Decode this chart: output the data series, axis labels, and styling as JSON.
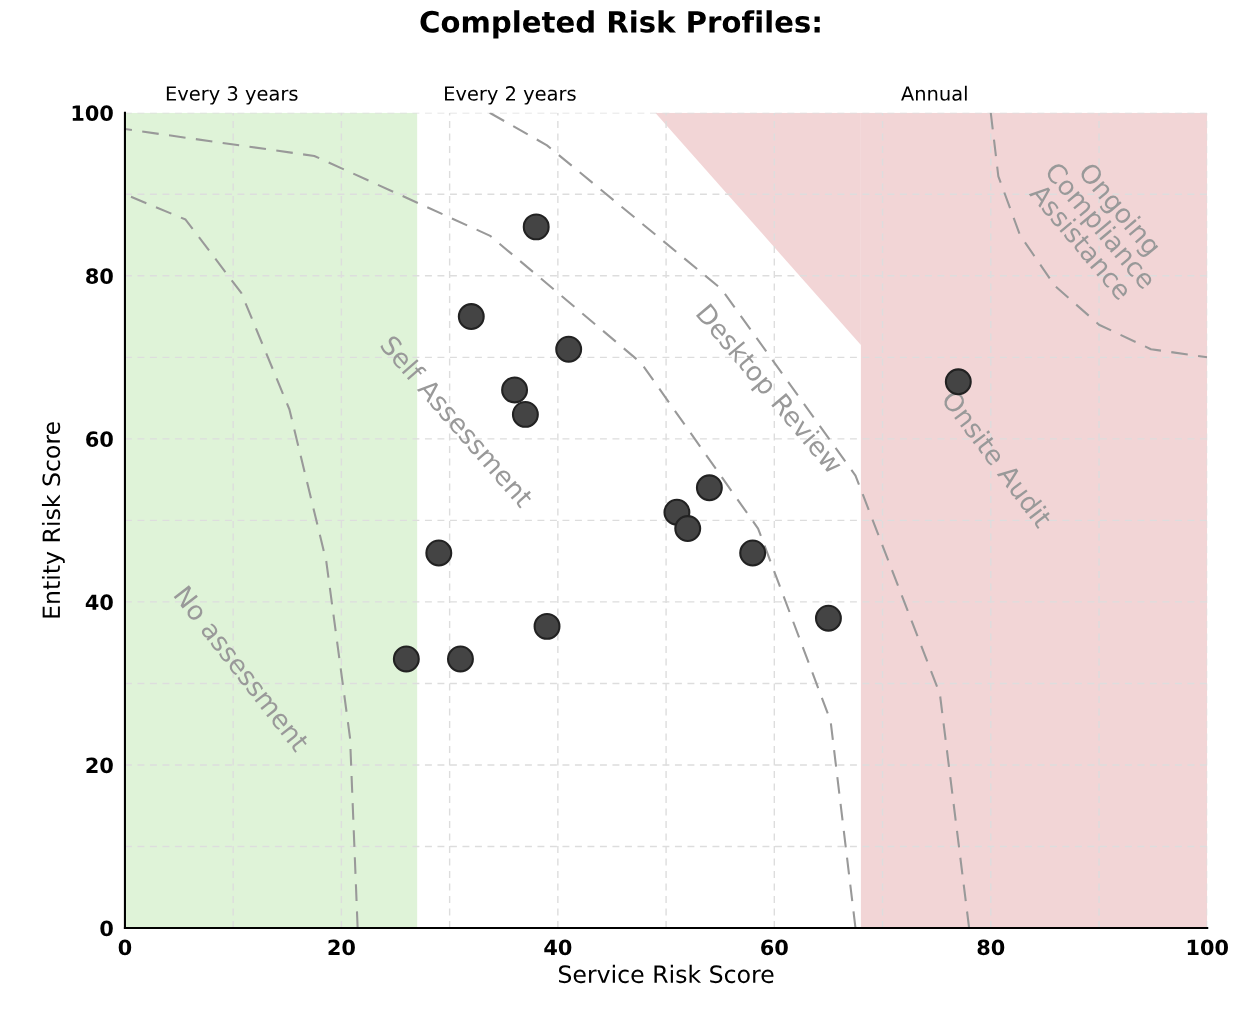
{
  "chart_data": {
    "type": "scatter",
    "title": "Completed Risk Profiles:",
    "xlabel": "Service Risk Score",
    "ylabel": "Entity Risk Score",
    "xlim": [
      0,
      100
    ],
    "ylim": [
      0,
      100
    ],
    "xticks": [
      0,
      {
        "value": 10,
        "label": null
      },
      20,
      {
        "value": 30,
        "label": null
      },
      40,
      {
        "value": 50,
        "label": null
      },
      60,
      {
        "value": 70,
        "label": null
      },
      80,
      {
        "value": 90,
        "label": null
      },
      100
    ],
    "yticks": [
      0,
      {
        "value": 10,
        "label": null
      },
      20,
      {
        "value": 30,
        "label": null
      },
      40,
      {
        "value": 50,
        "label": null
      },
      60,
      {
        "value": 70,
        "label": null
      },
      80,
      {
        "value": 90,
        "label": null
      },
      100
    ],
    "grid": true,
    "bands": [
      {
        "axis": "x",
        "from": 0,
        "to": 27,
        "label": "Every 3 years",
        "color": "#dff3d8"
      },
      {
        "axis": "x",
        "from": 68,
        "to": 100,
        "label": "Annual",
        "color": "#f2d5d6"
      }
    ],
    "series": [
      {
        "type": "area",
        "color": "#f2d5d6",
        "x": [
          49,
          68
        ],
        "values": [
          100,
          71.5
        ]
      },
      {
        "type": "line",
        "color": "#999999",
        "line_style": "dashed",
        "x": [
          21.5,
          20.8,
          18.6,
          15.2,
          10.75,
          5.6,
          0
        ],
        "values": [
          0,
          23.3,
          45,
          63.6,
          77.9,
          86.9,
          90
        ]
      },
      {
        "type": "line",
        "color": "#999999",
        "line_style": "dashed",
        "x": [
          67.5,
          65.2,
          58.5,
          47.7,
          33.75,
          17.5,
          0
        ],
        "values": [
          0,
          25.4,
          49,
          69.3,
          84.9,
          94.7,
          98
        ]
      },
      {
        "type": "line",
        "color": "#999999",
        "line_style": "dashed",
        "x": [
          78,
          75.3,
          67.5,
          55.1,
          39,
          33.7
        ],
        "values": [
          0,
          28.7,
          55.5,
          78.4,
          96.0,
          100
        ]
      },
      {
        "type": "line",
        "color": "#999999",
        "line_style": "dashed",
        "x": [
          80,
          80.7,
          82.7,
          85.9,
          90,
          94.8,
          100
        ],
        "values": [
          100,
          92.2,
          85,
          78.8,
          74.0,
          71.0,
          70
        ]
      },
      {
        "marker": "circle",
        "color": "#444444",
        "x": [
          26,
          29,
          31,
          32,
          36,
          37,
          38,
          39,
          41,
          51,
          52,
          54,
          58,
          65,
          77
        ],
        "values": [
          33,
          46,
          33,
          75,
          66,
          63,
          86,
          37,
          71,
          51,
          49,
          54,
          46,
          38,
          67
        ]
      }
    ],
    "annotations": [
      "Every 2 years",
      "No assessment",
      "Self Assessment",
      "Desktop Review",
      "Onsite Audit",
      "Ongoing\nCompliance\nAssistance"
    ]
  }
}
